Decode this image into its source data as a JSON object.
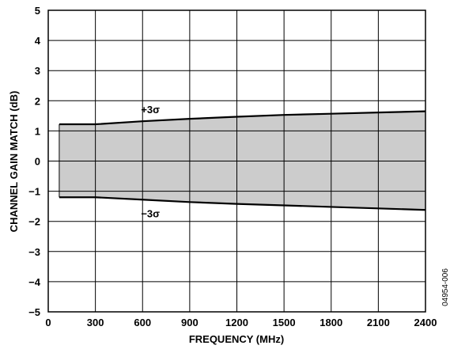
{
  "chart_data": {
    "type": "area",
    "title": "",
    "xlabel": "FREQUENCY (MHz)",
    "ylabel": "CHANNEL GAIN MATCH (dB)",
    "xlim": [
      0,
      2400
    ],
    "ylim": [
      -5,
      5
    ],
    "x_ticks": [
      0,
      300,
      600,
      900,
      1200,
      1500,
      1800,
      2100,
      2400
    ],
    "x_tick_labels": [
      "0",
      "300",
      "600",
      "900",
      "1200",
      "1500",
      "1800",
      "2100",
      "2400"
    ],
    "y_ticks": [
      5,
      4,
      3,
      2,
      1,
      0,
      -1,
      -2,
      -3,
      -4,
      -5
    ],
    "y_tick_labels": [
      "5",
      "4",
      "3",
      "2",
      "1",
      "0",
      "−1",
      "−2",
      "−3",
      "−4",
      "−5"
    ],
    "grid": true,
    "series": [
      {
        "name": "+3σ",
        "x": [
          70,
          300,
          600,
          900,
          1200,
          1500,
          1800,
          2100,
          2400
        ],
        "values": [
          1.22,
          1.22,
          1.32,
          1.4,
          1.47,
          1.53,
          1.57,
          1.61,
          1.65
        ]
      },
      {
        "name": "−3σ",
        "x": [
          70,
          300,
          600,
          900,
          1200,
          1500,
          1800,
          2100,
          2400
        ],
        "values": [
          -1.2,
          -1.2,
          -1.28,
          -1.36,
          -1.42,
          -1.47,
          -1.52,
          -1.57,
          -1.62
        ]
      }
    ],
    "fill_color": "#cccccc",
    "line_color": "#000000",
    "figure_id": "04954-006"
  }
}
